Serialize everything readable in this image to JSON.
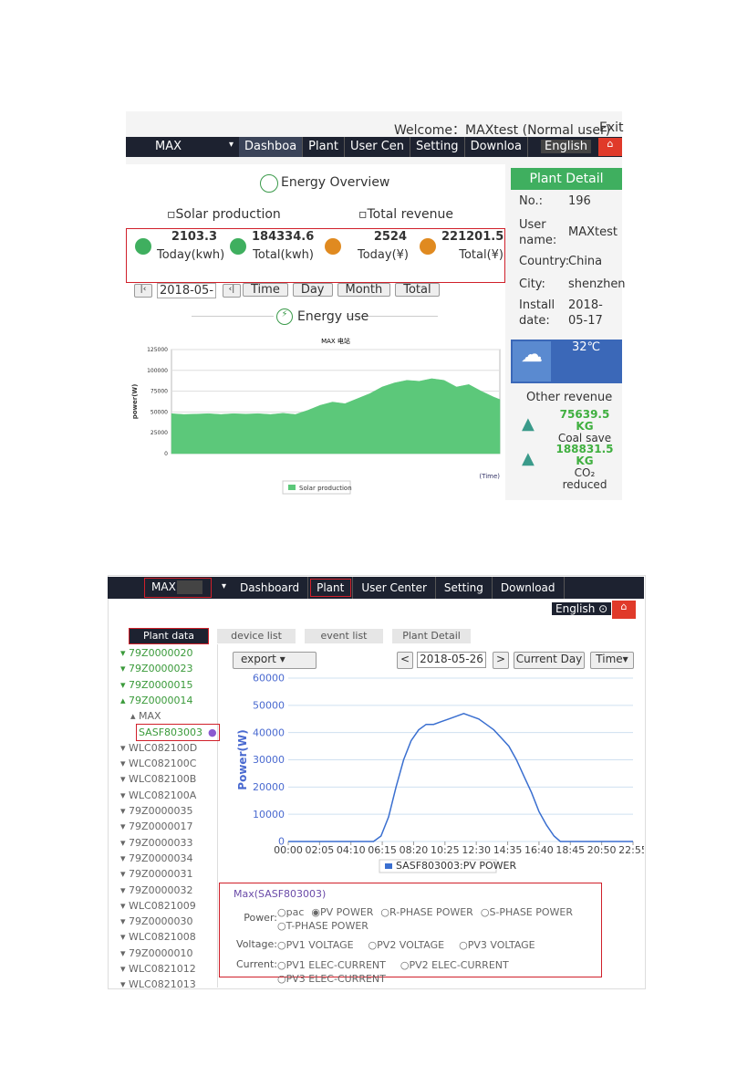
{
  "screen1": {
    "welcome": "Welcome：MAXtest (Normal user)",
    "exit": "Exit",
    "nav": {
      "plant_name": "MAX",
      "items": [
        "Dashboa",
        "Plant",
        "User Cen",
        "Setting",
        "Downloa"
      ],
      "language": "English"
    },
    "overview": {
      "title": "Energy Overview",
      "solar_label": "Solar production",
      "revenue_label": "Total revenue",
      "stats": [
        {
          "value": 2103.3,
          "label": "Today(kwh)"
        },
        {
          "value": 184334.6,
          "label": "Total(kwh)"
        },
        {
          "value": 2524,
          "label": "Today(¥)"
        },
        {
          "value": 221201.5,
          "label": "Total(¥)"
        }
      ]
    },
    "controls": {
      "date": "2018-05-",
      "buttons": [
        "Time",
        "Day",
        "Month",
        "Total"
      ]
    },
    "energy_use": "Energy use",
    "chart": {
      "type": "area",
      "title": "MAX 电站",
      "y_label": "power(W)",
      "x_label": "(Time)",
      "legend": "Solar production",
      "color": "#5cc87a",
      "grid": true,
      "x": [
        0,
        40,
        80,
        120,
        160,
        200,
        240,
        280,
        320,
        360,
        400,
        440,
        480,
        520,
        560,
        600,
        640,
        680,
        720,
        760,
        800,
        840,
        880,
        920,
        960,
        1000,
        1040,
        1060
      ],
      "values": [
        48000,
        47000,
        47500,
        48000,
        47000,
        48000,
        47500,
        48000,
        47000,
        48500,
        47000,
        52000,
        58000,
        62000,
        60000,
        66000,
        72000,
        80000,
        85000,
        88000,
        87000,
        90000,
        88000,
        80000,
        83000,
        75000,
        68000,
        65000
      ],
      "xlim": [
        0,
        1060
      ],
      "ylim": [
        0,
        125000
      ],
      "yticks": [
        0,
        25000,
        50000,
        75000,
        100000,
        125000
      ]
    },
    "plant_detail": {
      "title": "Plant Detail",
      "fields": [
        {
          "label": "No.:",
          "value": "196"
        },
        {
          "label": "User name:",
          "value": "MAXtest"
        },
        {
          "label": "Country:",
          "value": "China"
        },
        {
          "label": "City:",
          "value": "shenzhen"
        },
        {
          "label": "Install date:",
          "value": "2018-05-17"
        }
      ]
    },
    "weather": {
      "temperature": "32℃"
    },
    "other_revenue": {
      "title": "Other revenue",
      "items": [
        {
          "value": "75639.5 KG",
          "label": "Coal save"
        },
        {
          "value": "188831.5 KG",
          "label": "CO₂ reduced"
        }
      ]
    }
  },
  "screen2": {
    "nav": {
      "plant_name": "MAX",
      "items": [
        "Dashboard",
        "Plant",
        "User Center",
        "Setting",
        "Download"
      ],
      "language": "English"
    },
    "tabs": [
      "Plant data",
      "device list",
      "event list",
      "Plant Detail"
    ],
    "tree": [
      "79Z0000020",
      "79Z0000023",
      "79Z0000015",
      "79Z0000014",
      "MAX",
      "SASF803003",
      "WLC082100D",
      "WLC082100C",
      "WLC082100B",
      "WLC082100A",
      "79Z0000035",
      "79Z0000017",
      "79Z0000033",
      "79Z0000034",
      "79Z0000031",
      "79Z0000032",
      "WLC0821009",
      "79Z0000030",
      "WLC0821008",
      "79Z0000010",
      "WLC0821012",
      "WLC0821013"
    ],
    "toolbar": {
      "export": "export",
      "date": "2018-05-26",
      "current": "Current Day",
      "mode": "Time"
    },
    "chart": {
      "type": "line",
      "y_label": "Power(W)",
      "legend": "SASF803003:PV POWER",
      "color": "#3a6fd0",
      "grid": true,
      "x": [
        0,
        120,
        240,
        340,
        370,
        400,
        430,
        460,
        490,
        520,
        550,
        580,
        610,
        640,
        670,
        700,
        730,
        760,
        790,
        820,
        850,
        880,
        910,
        940,
        970,
        1000,
        1030,
        1060,
        1085,
        1200,
        1375
      ],
      "values": [
        0,
        0,
        0,
        0,
        2000,
        9000,
        20000,
        30000,
        37000,
        41000,
        43000,
        43000,
        44000,
        45000,
        46000,
        47000,
        46000,
        45000,
        43000,
        41000,
        38000,
        35000,
        30000,
        24000,
        18000,
        11000,
        6000,
        2000,
        0,
        0,
        0
      ],
      "xlim": [
        0,
        1375
      ],
      "ylim": [
        0,
        60000
      ],
      "yticks": [
        0,
        10000,
        20000,
        30000,
        40000,
        50000,
        60000
      ],
      "xticks": [
        {
          "value": 0,
          "label": "00:00"
        },
        {
          "value": 125,
          "label": "02:05"
        },
        {
          "value": 250,
          "label": "04:10"
        },
        {
          "value": 375,
          "label": "06:15"
        },
        {
          "value": 500,
          "label": "08:20"
        },
        {
          "value": 625,
          "label": "10:25"
        },
        {
          "value": 750,
          "label": "12:30"
        },
        {
          "value": 875,
          "label": "14:35"
        },
        {
          "value": 1000,
          "label": "16:40"
        },
        {
          "value": 1125,
          "label": "18:45"
        },
        {
          "value": 1250,
          "label": "20:50"
        },
        {
          "value": 1375,
          "label": "22:55"
        }
      ]
    },
    "options": {
      "title": "Max(SASF803003)",
      "groups": [
        {
          "label": "Power:",
          "items": [
            "pac",
            "PV POWER",
            "R-PHASE POWER",
            "S-PHASE POWER",
            "T-PHASE POWER"
          ]
        },
        {
          "label": "Voltage:",
          "items": [
            "PV1 VOLTAGE",
            "PV2 VOLTAGE",
            "PV3 VOLTAGE"
          ]
        },
        {
          "label": "Current:",
          "items": [
            "PV1 ELEC-CURRENT",
            "PV2 ELEC-CURRENT",
            "PV3 ELEC-CURRENT"
          ]
        }
      ]
    }
  }
}
